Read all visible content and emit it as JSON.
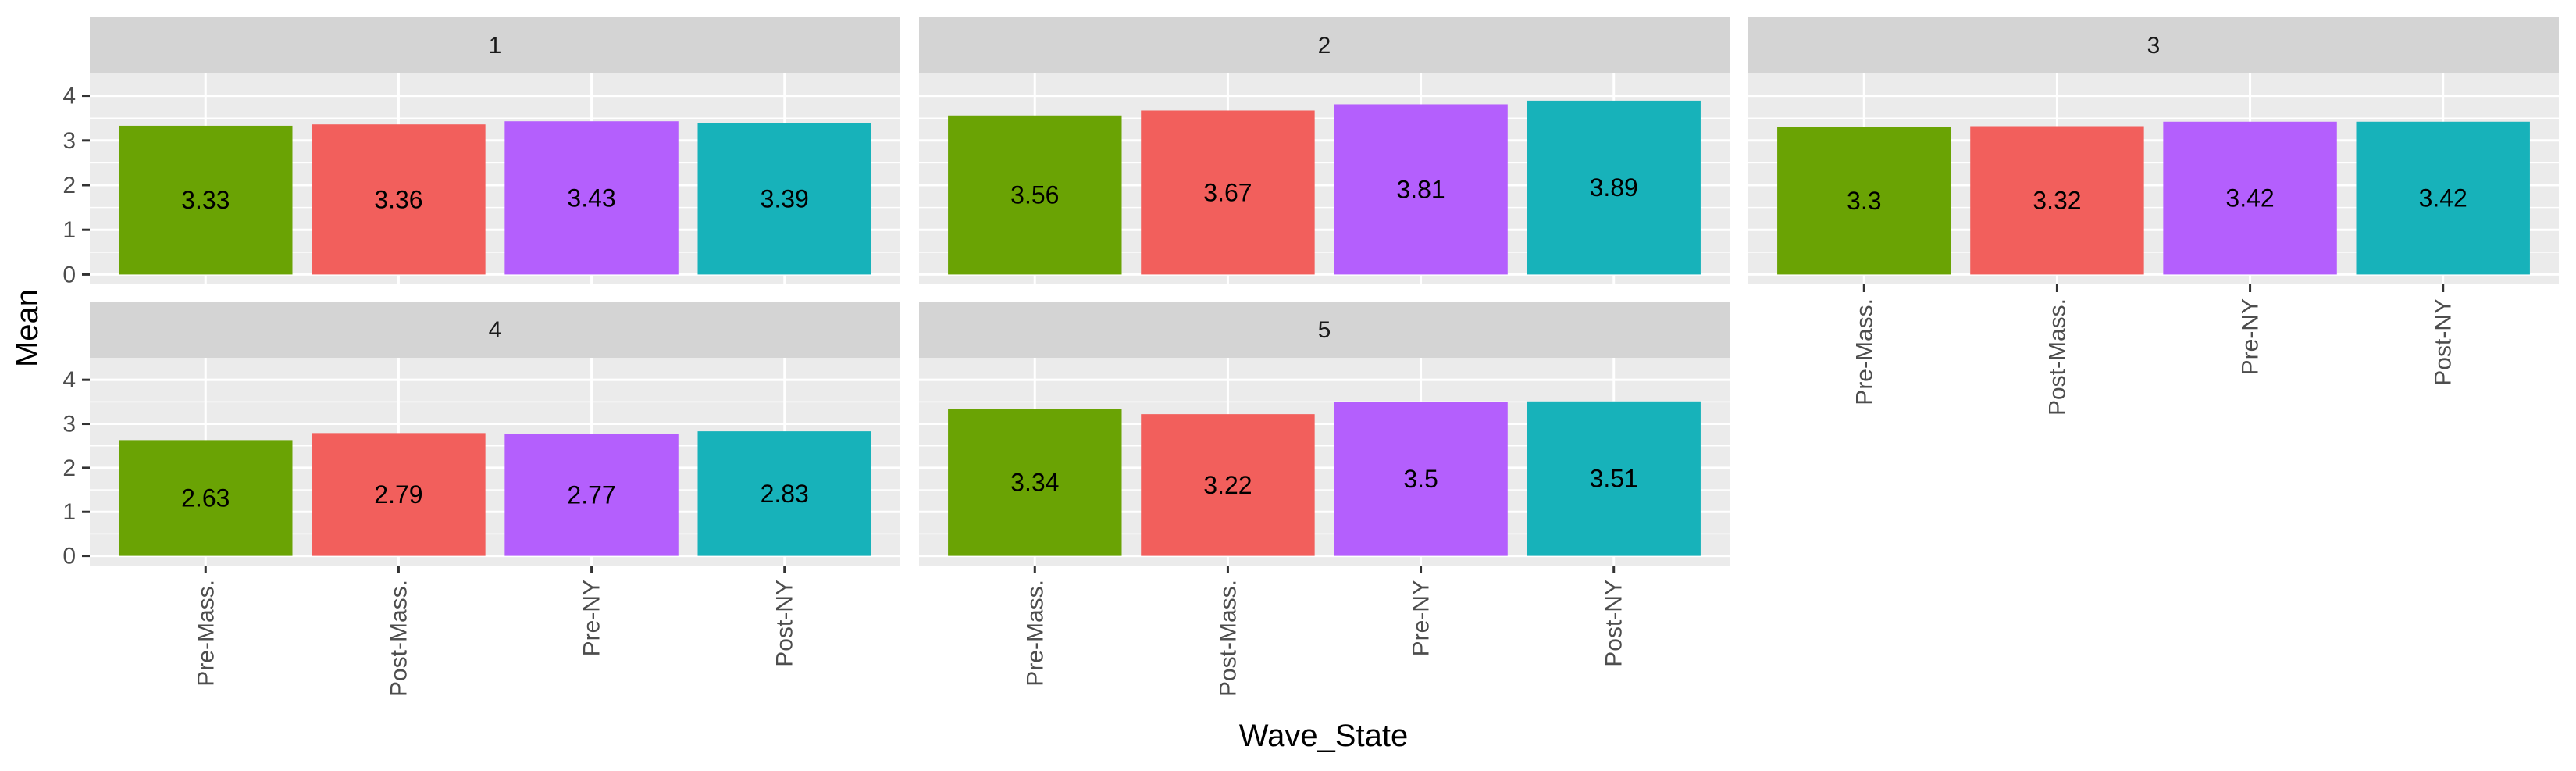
{
  "chart_data": {
    "type": "bar",
    "layout": "facet-wrap",
    "xlabel": "Wave_State",
    "ylabel": "Mean",
    "ylim": [
      0,
      4.5
    ],
    "yticks": [
      0,
      1,
      2,
      3,
      4
    ],
    "grid": true,
    "legend": "none",
    "categories": [
      "Pre-Mass.",
      "Post-Mass.",
      "Pre-NY",
      "Post-NY"
    ],
    "category_colors": [
      "#6aa304",
      "#f25f5c",
      "#b45ffd",
      "#17b2ba"
    ],
    "panel_background": "#ebebeb",
    "strip_background": "#d4d4d4",
    "facets": [
      {
        "label": "1",
        "values": [
          3.33,
          3.36,
          3.43,
          3.39
        ],
        "labels": [
          "3.33",
          "3.36",
          "3.43",
          "3.39"
        ]
      },
      {
        "label": "2",
        "values": [
          3.56,
          3.67,
          3.81,
          3.89
        ],
        "labels": [
          "3.56",
          "3.67",
          "3.81",
          "3.89"
        ]
      },
      {
        "label": "3",
        "values": [
          3.3,
          3.32,
          3.42,
          3.42
        ],
        "labels": [
          "3.3",
          "3.32",
          "3.42",
          "3.42"
        ]
      },
      {
        "label": "4",
        "values": [
          2.63,
          2.79,
          2.77,
          2.83
        ],
        "labels": [
          "2.63",
          "2.79",
          "2.77",
          "2.83"
        ]
      },
      {
        "label": "5",
        "values": [
          3.34,
          3.22,
          3.5,
          3.51
        ],
        "labels": [
          "3.34",
          "3.22",
          "3.5",
          "3.51"
        ]
      }
    ]
  }
}
